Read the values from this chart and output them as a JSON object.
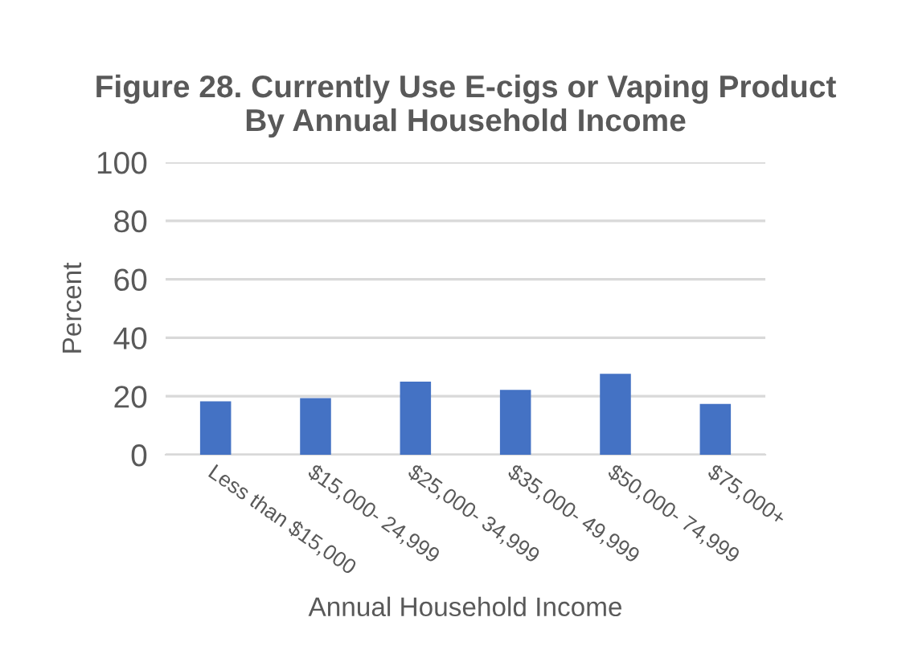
{
  "chart_data": {
    "type": "bar",
    "title": "Figure 28. Currently Use E-cigs or Vaping Product\nBy Annual Household Income",
    "xlabel": "Annual Household Income",
    "ylabel": "Percent",
    "categories": [
      "Less than $15,000",
      "$15,000- 24,999",
      "$25,000- 34,999",
      "$35,000- 49,999",
      "$50,000- 74,999",
      "$75,000+"
    ],
    "values": [
      18.3,
      19.4,
      25.0,
      22.2,
      27.7,
      17.4
    ],
    "color": "#4472c4",
    "ylim": [
      0,
      100
    ],
    "yticks": [
      0,
      20,
      40,
      60,
      80,
      100
    ],
    "grid": "y",
    "legend": false
  }
}
